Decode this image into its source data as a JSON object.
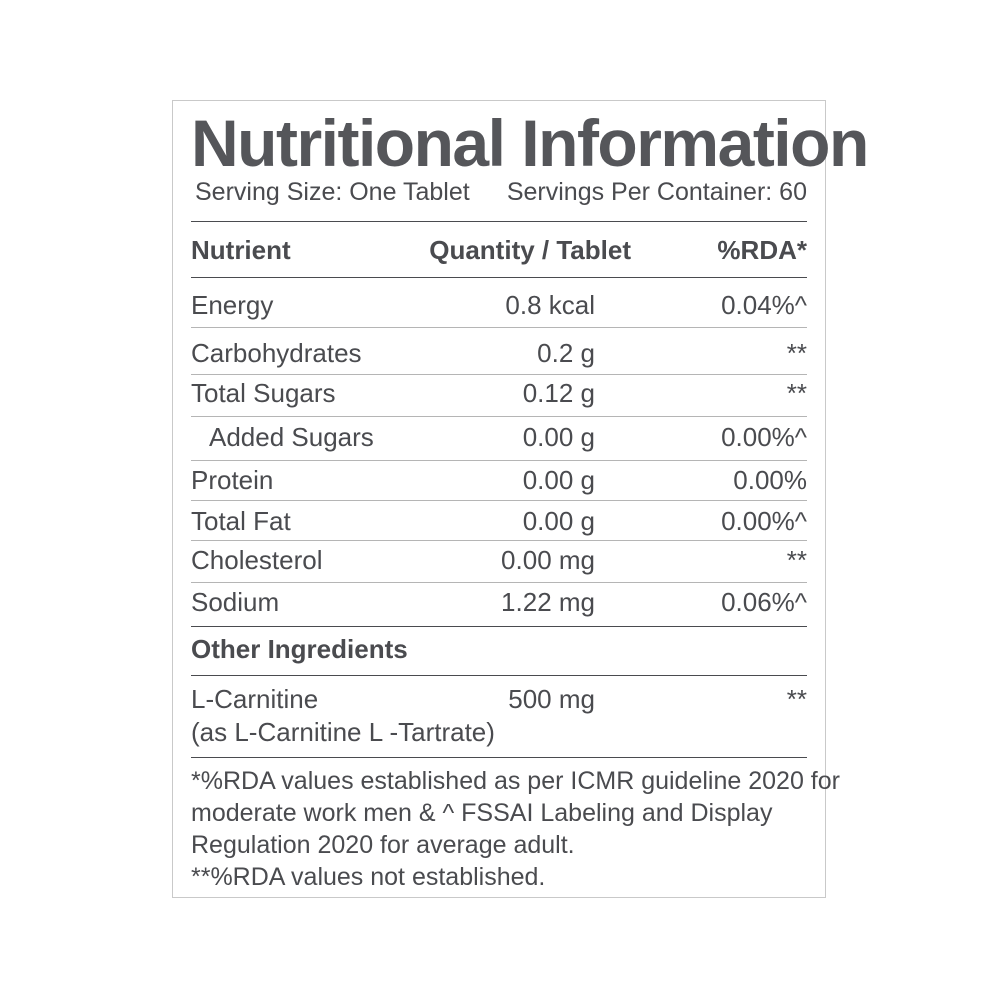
{
  "title": "Nutritional Information",
  "serving_size": "Serving Size: One Tablet",
  "servings_per_container": "Servings Per Container: 60",
  "headers": {
    "nutrient": "Nutrient",
    "quantity": "Quantity / Tablet",
    "rda": "%RDA*"
  },
  "rows": [
    {
      "nutrient": "Energy",
      "quantity": "0.8 kcal",
      "rda": "0.04%^"
    },
    {
      "nutrient": "Carbohydrates",
      "quantity": "0.2 g",
      "rda": "**"
    },
    {
      "nutrient": "Total Sugars",
      "quantity": "0.12 g",
      "rda": "**"
    },
    {
      "nutrient": "Added Sugars",
      "quantity": "0.00 g",
      "rda": "0.00%^"
    },
    {
      "nutrient": "Protein",
      "quantity": "0.00 g",
      "rda": "0.00%"
    },
    {
      "nutrient": "Total Fat",
      "quantity": "0.00 g",
      "rda": "0.00%^"
    },
    {
      "nutrient": "Cholesterol",
      "quantity": "0.00 mg",
      "rda": "**"
    },
    {
      "nutrient": "Sodium",
      "quantity": "1.22 mg",
      "rda": "0.06%^"
    }
  ],
  "other_heading": "Other Ingredients",
  "other": {
    "name": "L-Carnitine",
    "detail": "(as L-Carnitine L -Tartrate)",
    "quantity": "500 mg",
    "rda": "**"
  },
  "footnotes": [
    "*%RDA values established as per ICMR guideline 2020 for",
    "moderate work men & ^ FSSAI Labeling and Display",
    "Regulation 2020 for average adult.",
    "**%RDA values not established."
  ]
}
